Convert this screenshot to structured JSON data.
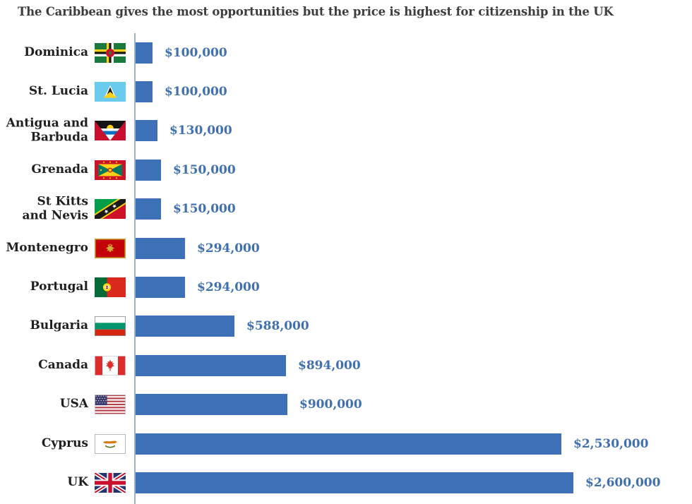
{
  "page": {
    "background": "#ffffff"
  },
  "title": "The Caribbean gives the most opportunities but the price is highest for citizenship in the UK",
  "colors": {
    "bar": "#3D70B6",
    "value_label": "#4170AF",
    "title_text": "#3D3D3D",
    "country_label": "#1F1F1F",
    "axis_line": "#9EB3C2"
  },
  "chart_data": {
    "type": "bar",
    "orientation": "horizontal",
    "title": "The Caribbean gives the most opportunities but the price is highest for citizenship in the UK",
    "xlabel": "",
    "ylabel": "",
    "xlim": [
      0,
      2600000
    ],
    "grid": false,
    "legend": "none",
    "value_label_position": "right-of-bar",
    "rows": [
      {
        "country": "Dominica",
        "label_lines": [
          "Dominica"
        ],
        "value": 100000,
        "value_label": "$100,000",
        "flag_icon": "dominica-flag-icon"
      },
      {
        "country": "St. Lucia",
        "label_lines": [
          "St. Lucia"
        ],
        "value": 100000,
        "value_label": "$100,000",
        "flag_icon": "st-lucia-flag-icon"
      },
      {
        "country": "Antigua and Barbuda",
        "label_lines": [
          "Antigua and",
          "Barbuda"
        ],
        "value": 130000,
        "value_label": "$130,000",
        "flag_icon": "antigua-and-barbuda-flag-icon"
      },
      {
        "country": "Grenada",
        "label_lines": [
          "Grenada"
        ],
        "value": 150000,
        "value_label": "$150,000",
        "flag_icon": "grenada-flag-icon"
      },
      {
        "country": "St Kitts and Nevis",
        "label_lines": [
          "St Kitts",
          "and Nevis"
        ],
        "value": 150000,
        "value_label": "$150,000",
        "flag_icon": "st-kitts-and-nevis-flag-icon"
      },
      {
        "country": "Montenegro",
        "label_lines": [
          "Montenegro"
        ],
        "value": 294000,
        "value_label": "$294,000",
        "flag_icon": "montenegro-flag-icon"
      },
      {
        "country": "Portugal",
        "label_lines": [
          "Portugal"
        ],
        "value": 294000,
        "value_label": "$294,000",
        "flag_icon": "portugal-flag-icon"
      },
      {
        "country": "Bulgaria",
        "label_lines": [
          "Bulgaria"
        ],
        "value": 588000,
        "value_label": "$588,000",
        "flag_icon": "bulgaria-flag-icon"
      },
      {
        "country": "Canada",
        "label_lines": [
          "Canada"
        ],
        "value": 894000,
        "value_label": "$894,000",
        "flag_icon": "canada-flag-icon"
      },
      {
        "country": "USA",
        "label_lines": [
          "USA"
        ],
        "value": 900000,
        "value_label": "$900,000",
        "flag_icon": "usa-flag-icon"
      },
      {
        "country": "Cyprus",
        "label_lines": [
          "Cyprus"
        ],
        "value": 2530000,
        "value_label": "$2,530,000",
        "flag_icon": "cyprus-flag-icon"
      },
      {
        "country": "UK",
        "label_lines": [
          "UK"
        ],
        "value": 2600000,
        "value_label": "$2,600,000",
        "flag_icon": "uk-flag-icon"
      }
    ]
  }
}
